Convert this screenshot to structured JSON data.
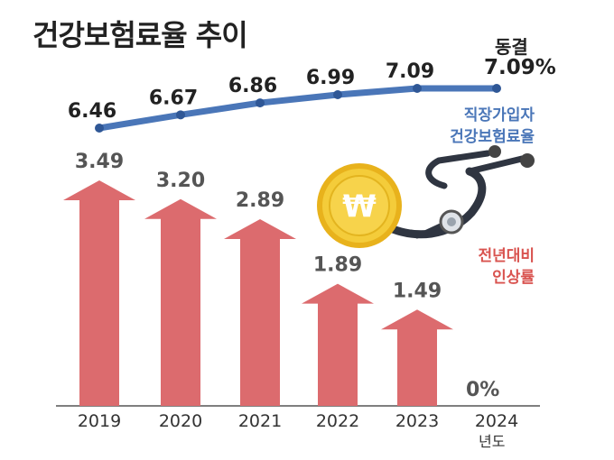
{
  "title": "건강보험료율 추이",
  "freeze": {
    "label": "동결",
    "value": "7.09%"
  },
  "legend": {
    "line": [
      "직장가입자",
      "건강보험료율"
    ],
    "bars": [
      "전년대비",
      "인상률"
    ]
  },
  "zero_label": "0%",
  "year_unit": "년도",
  "colors": {
    "line": "#4a76b8",
    "bars": "#dc6b6e",
    "point": "#2f5796"
  },
  "icon": "won-coin-and-stethoscope-icon",
  "chart_data": {
    "type": "bar",
    "categories": [
      "2019",
      "2020",
      "2021",
      "2022",
      "2023",
      "2024"
    ],
    "series": [
      {
        "name": "전년대비 인상률",
        "type": "bar",
        "values": [
          3.49,
          3.2,
          2.89,
          1.89,
          1.49,
          0
        ],
        "labels": [
          "3.49",
          "3.20",
          "2.89",
          "1.89",
          "1.49",
          "0%"
        ]
      },
      {
        "name": "직장가입자 건강보험료율",
        "type": "line",
        "values": [
          6.46,
          6.67,
          6.86,
          6.99,
          7.09,
          7.09
        ],
        "labels": [
          "6.46",
          "6.67",
          "6.86",
          "6.99",
          "7.09",
          "7.09%"
        ]
      }
    ],
    "title": "건강보험료율 추이",
    "xlabel": "",
    "ylabel": ""
  }
}
